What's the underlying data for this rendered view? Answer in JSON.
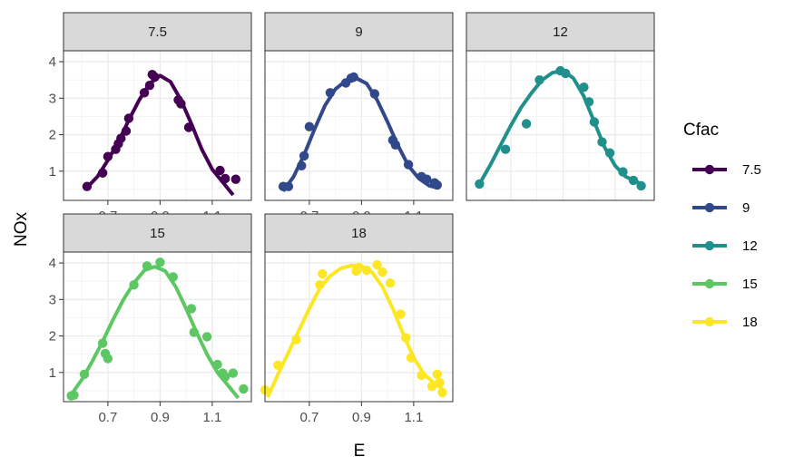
{
  "chart_data": {
    "type": "scatter",
    "facet_var": "Cfac",
    "xlabel": "E",
    "ylabel": "NOx",
    "xlim": [
      0.53,
      1.25
    ],
    "ylim": [
      0.2,
      4.3
    ],
    "x_ticks": [
      0.7,
      0.9,
      1.1
    ],
    "x_tick_labels": [
      "0.7",
      "0.9",
      "1.1"
    ],
    "y_ticks": [
      1,
      2,
      3,
      4
    ],
    "y_tick_labels": [
      "1",
      "2",
      "3",
      "4"
    ],
    "grid": true,
    "legend": {
      "title": "Cfac",
      "position": "right",
      "entries": [
        "7.5",
        "9",
        "12",
        "15",
        "18"
      ]
    },
    "series": [
      {
        "name": "7.5",
        "color": "#440154",
        "points": [
          [
            0.62,
            0.58
          ],
          [
            0.68,
            0.95
          ],
          [
            0.7,
            1.4
          ],
          [
            0.73,
            1.6
          ],
          [
            0.74,
            1.75
          ],
          [
            0.75,
            1.9
          ],
          [
            0.77,
            2.1
          ],
          [
            0.78,
            2.45
          ],
          [
            0.84,
            3.15
          ],
          [
            0.86,
            3.35
          ],
          [
            0.87,
            3.65
          ],
          [
            0.88,
            3.58
          ],
          [
            0.97,
            2.95
          ],
          [
            0.98,
            2.85
          ],
          [
            1.01,
            2.2
          ],
          [
            1.13,
            1.02
          ],
          [
            1.15,
            0.8
          ],
          [
            1.19,
            0.78
          ]
        ],
        "curve": [
          [
            0.62,
            0.55
          ],
          [
            0.66,
            0.85
          ],
          [
            0.7,
            1.3
          ],
          [
            0.74,
            1.8
          ],
          [
            0.78,
            2.4
          ],
          [
            0.82,
            2.95
          ],
          [
            0.86,
            3.4
          ],
          [
            0.9,
            3.62
          ],
          [
            0.94,
            3.45
          ],
          [
            0.98,
            2.95
          ],
          [
            1.02,
            2.3
          ],
          [
            1.06,
            1.6
          ],
          [
            1.1,
            1.05
          ],
          [
            1.14,
            0.7
          ],
          [
            1.18,
            0.35
          ]
        ]
      },
      {
        "name": "9",
        "color": "#31488A",
        "points": [
          [
            0.6,
            0.58
          ],
          [
            0.62,
            0.58
          ],
          [
            0.67,
            1.15
          ],
          [
            0.68,
            1.42
          ],
          [
            0.7,
            2.22
          ],
          [
            0.78,
            3.15
          ],
          [
            0.84,
            3.42
          ],
          [
            0.86,
            3.55
          ],
          [
            0.87,
            3.58
          ],
          [
            0.95,
            3.12
          ],
          [
            1.02,
            1.85
          ],
          [
            1.03,
            1.72
          ],
          [
            1.08,
            1.18
          ],
          [
            1.13,
            0.85
          ],
          [
            1.15,
            0.78
          ],
          [
            1.18,
            0.68
          ],
          [
            1.19,
            0.62
          ]
        ],
        "curve": [
          [
            0.6,
            0.45
          ],
          [
            0.64,
            0.85
          ],
          [
            0.68,
            1.45
          ],
          [
            0.72,
            2.15
          ],
          [
            0.76,
            2.8
          ],
          [
            0.8,
            3.25
          ],
          [
            0.84,
            3.48
          ],
          [
            0.88,
            3.55
          ],
          [
            0.92,
            3.4
          ],
          [
            0.96,
            2.95
          ],
          [
            1.0,
            2.35
          ],
          [
            1.04,
            1.7
          ],
          [
            1.08,
            1.15
          ],
          [
            1.12,
            0.8
          ],
          [
            1.16,
            0.6
          ],
          [
            1.19,
            0.55
          ]
        ]
      },
      {
        "name": "12",
        "color": "#21908C",
        "points": [
          [
            0.58,
            0.65
          ],
          [
            0.68,
            1.6
          ],
          [
            0.76,
            2.3
          ],
          [
            0.81,
            3.5
          ],
          [
            0.89,
            3.75
          ],
          [
            0.91,
            3.68
          ],
          [
            0.98,
            3.3
          ],
          [
            1.0,
            2.9
          ],
          [
            1.02,
            2.35
          ],
          [
            1.05,
            1.8
          ],
          [
            1.08,
            1.5
          ],
          [
            1.13,
            0.98
          ],
          [
            1.17,
            0.75
          ],
          [
            1.2,
            0.6
          ]
        ],
        "curve": [
          [
            0.58,
            0.65
          ],
          [
            0.62,
            1.15
          ],
          [
            0.66,
            1.7
          ],
          [
            0.7,
            2.25
          ],
          [
            0.74,
            2.75
          ],
          [
            0.78,
            3.15
          ],
          [
            0.82,
            3.5
          ],
          [
            0.86,
            3.7
          ],
          [
            0.9,
            3.75
          ],
          [
            0.94,
            3.55
          ],
          [
            0.98,
            3.05
          ],
          [
            1.02,
            2.35
          ],
          [
            1.06,
            1.65
          ],
          [
            1.1,
            1.15
          ],
          [
            1.14,
            0.85
          ],
          [
            1.18,
            0.72
          ],
          [
            1.21,
            0.62
          ]
        ]
      },
      {
        "name": "15",
        "color": "#5DC863",
        "points": [
          [
            0.56,
            0.36
          ],
          [
            0.57,
            0.38
          ],
          [
            0.61,
            0.95
          ],
          [
            0.68,
            1.8
          ],
          [
            0.69,
            1.52
          ],
          [
            0.7,
            1.38
          ],
          [
            0.8,
            3.4
          ],
          [
            0.85,
            3.92
          ],
          [
            0.9,
            4.02
          ],
          [
            0.95,
            3.62
          ],
          [
            1.02,
            2.75
          ],
          [
            1.03,
            2.1
          ],
          [
            1.08,
            1.98
          ],
          [
            1.12,
            1.22
          ],
          [
            1.14,
            0.98
          ],
          [
            1.15,
            0.88
          ],
          [
            1.18,
            0.98
          ],
          [
            1.22,
            0.55
          ]
        ],
        "curve": [
          [
            0.56,
            0.4
          ],
          [
            0.6,
            0.8
          ],
          [
            0.64,
            1.3
          ],
          [
            0.68,
            1.85
          ],
          [
            0.72,
            2.45
          ],
          [
            0.76,
            3.0
          ],
          [
            0.8,
            3.45
          ],
          [
            0.84,
            3.8
          ],
          [
            0.88,
            3.9
          ],
          [
            0.92,
            3.78
          ],
          [
            0.96,
            3.35
          ],
          [
            1.0,
            2.75
          ],
          [
            1.04,
            2.1
          ],
          [
            1.08,
            1.5
          ],
          [
            1.12,
            1.0
          ],
          [
            1.16,
            0.65
          ],
          [
            1.2,
            0.3
          ]
        ]
      },
      {
        "name": "18",
        "color": "#FDE725",
        "points": [
          [
            0.53,
            0.52
          ],
          [
            0.58,
            1.2
          ],
          [
            0.65,
            1.9
          ],
          [
            0.74,
            3.4
          ],
          [
            0.75,
            3.7
          ],
          [
            0.88,
            3.78
          ],
          [
            0.89,
            3.88
          ],
          [
            0.92,
            3.8
          ],
          [
            0.96,
            3.95
          ],
          [
            0.98,
            3.75
          ],
          [
            1.01,
            3.45
          ],
          [
            1.05,
            2.6
          ],
          [
            1.07,
            1.95
          ],
          [
            1.09,
            1.4
          ],
          [
            1.13,
            0.92
          ],
          [
            1.17,
            0.62
          ],
          [
            1.19,
            0.95
          ],
          [
            1.2,
            0.72
          ],
          [
            1.21,
            0.45
          ]
        ],
        "curve": [
          [
            0.54,
            0.32
          ],
          [
            0.58,
            0.95
          ],
          [
            0.62,
            1.55
          ],
          [
            0.66,
            2.15
          ],
          [
            0.7,
            2.75
          ],
          [
            0.74,
            3.3
          ],
          [
            0.78,
            3.65
          ],
          [
            0.82,
            3.85
          ],
          [
            0.86,
            3.93
          ],
          [
            0.9,
            3.92
          ],
          [
            0.94,
            3.75
          ],
          [
            0.98,
            3.35
          ],
          [
            1.02,
            2.75
          ],
          [
            1.06,
            2.05
          ],
          [
            1.1,
            1.4
          ],
          [
            1.14,
            0.95
          ],
          [
            1.18,
            0.7
          ],
          [
            1.21,
            0.55
          ]
        ]
      }
    ]
  }
}
